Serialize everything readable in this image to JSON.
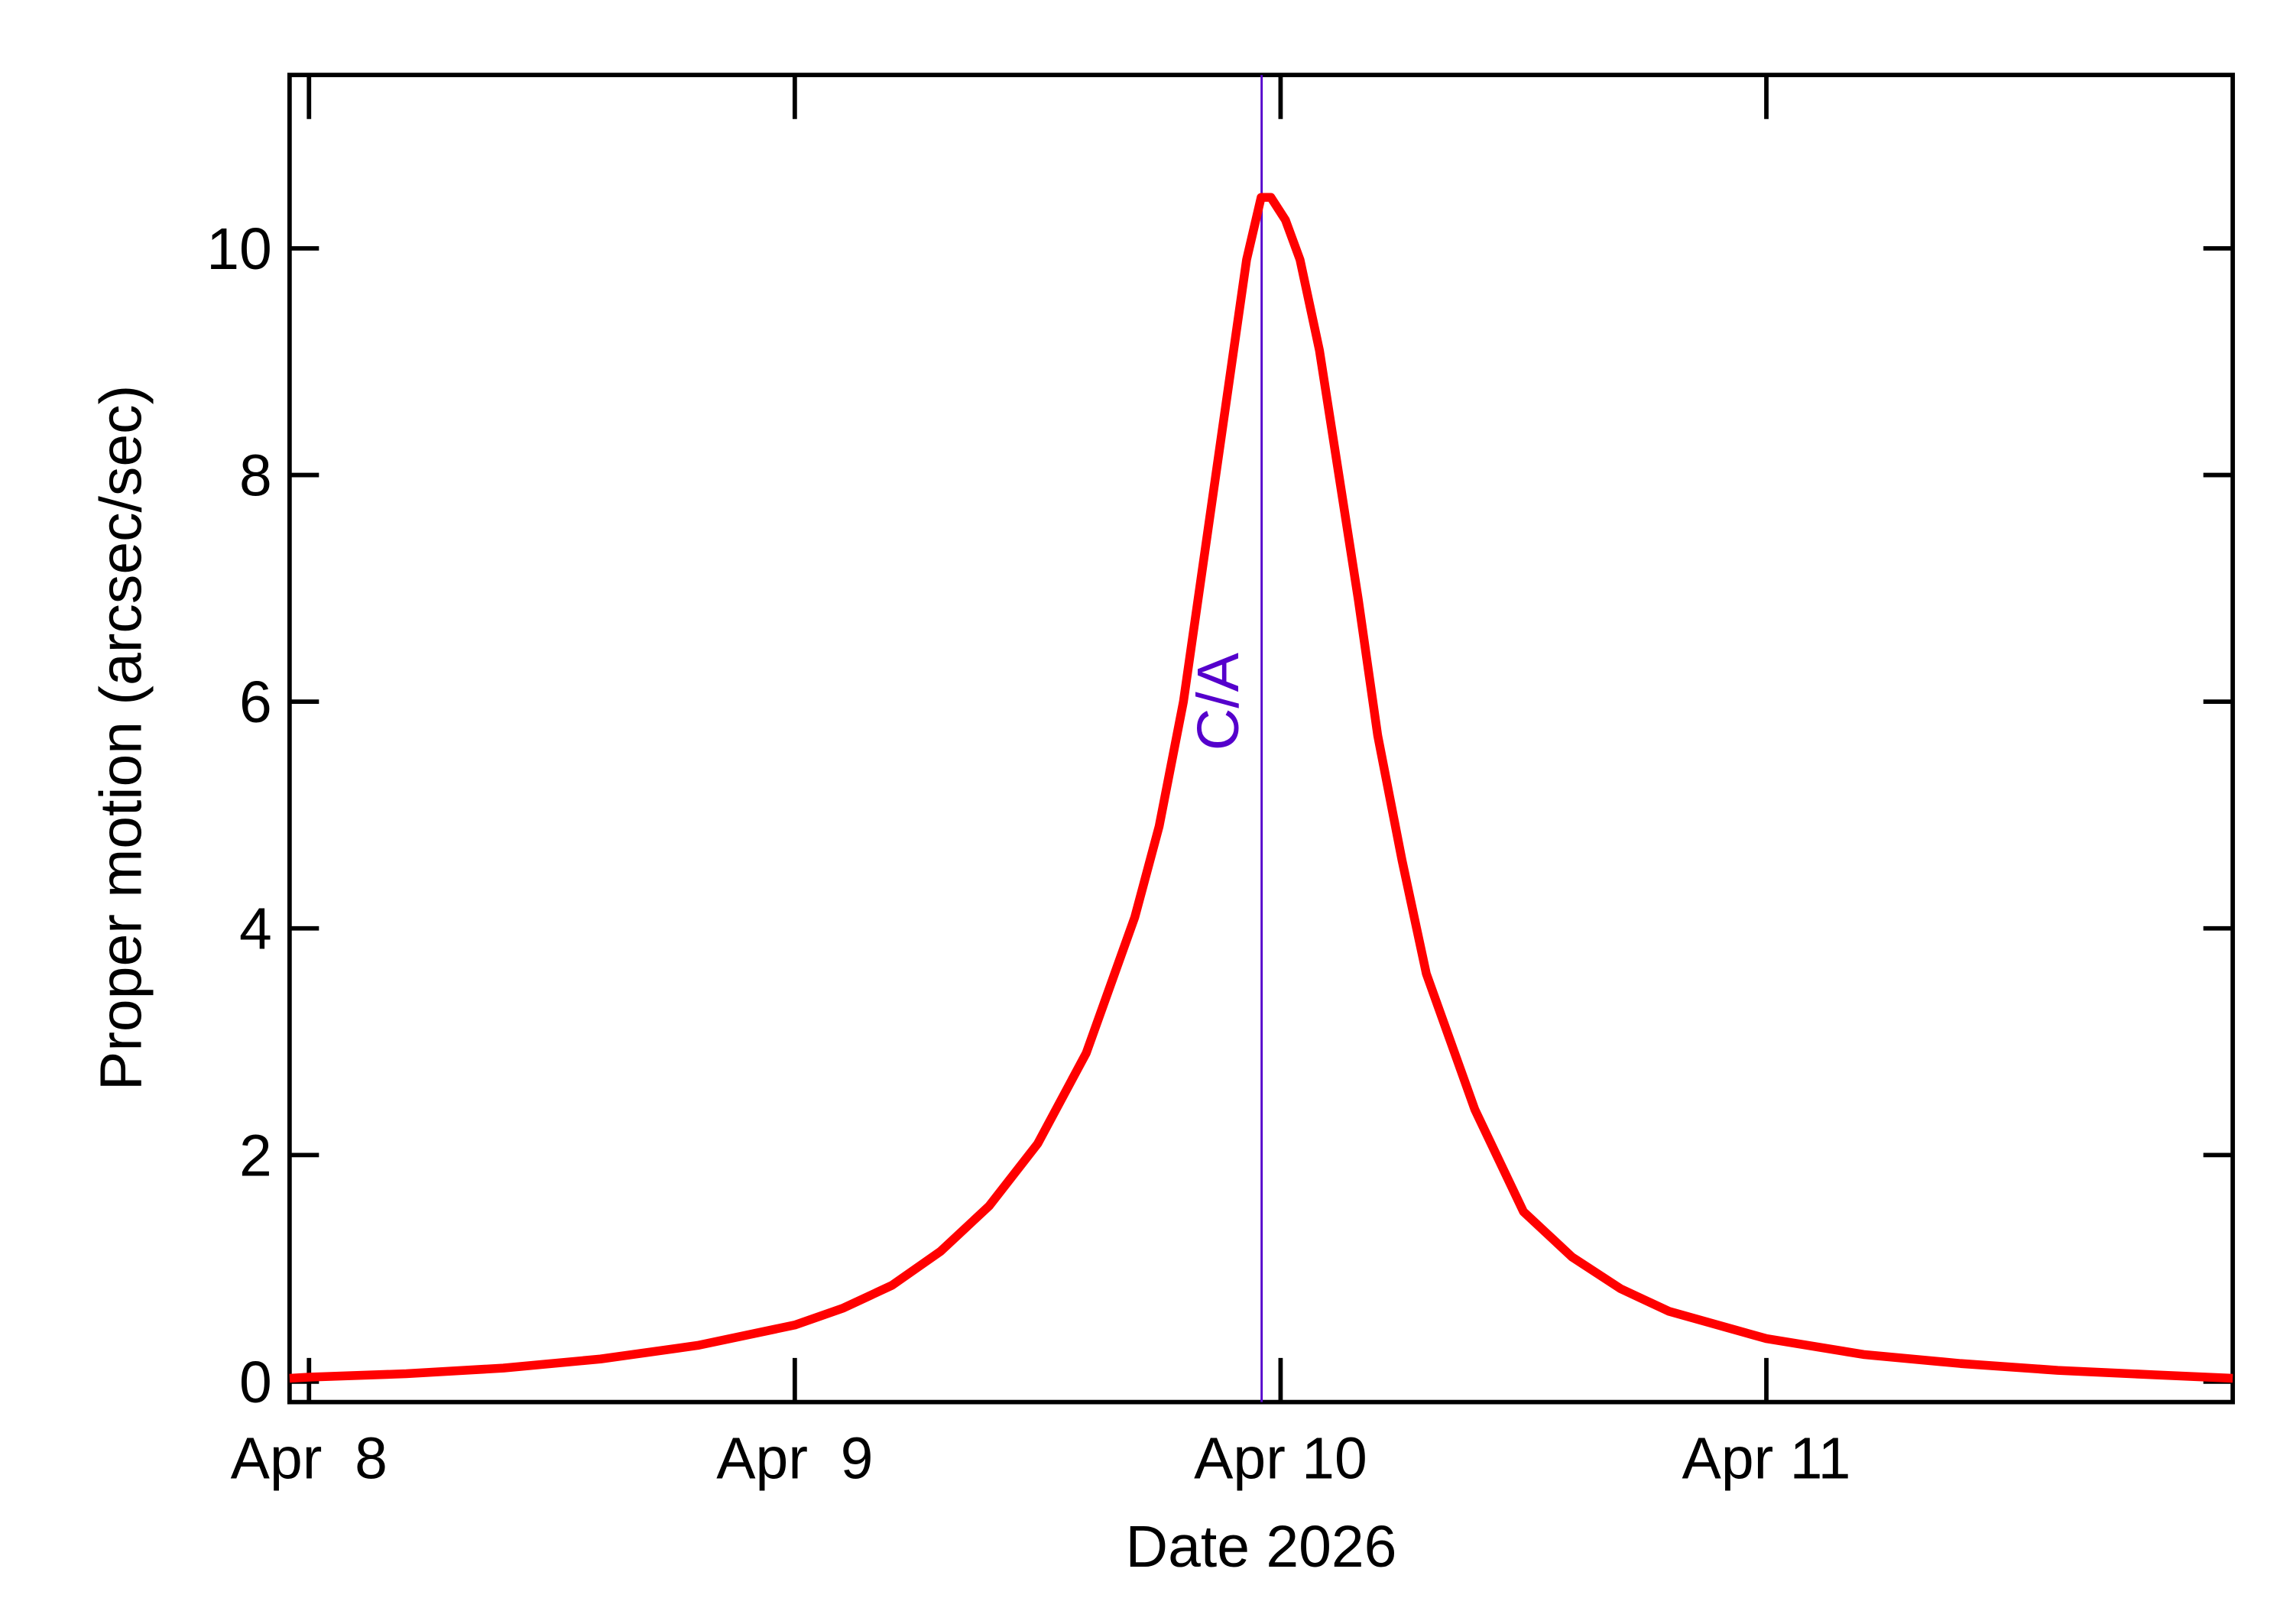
{
  "chart_data": {
    "type": "line",
    "x_label": "Date 2026",
    "y_label": "Proper motion (arcsec/sec)",
    "x": [
      -0.04,
      0.0,
      0.2,
      0.4,
      0.6,
      0.8,
      1.0,
      1.1,
      1.2,
      1.3,
      1.4,
      1.5,
      1.6,
      1.7,
      1.75,
      1.8,
      1.85,
      1.9,
      1.93,
      1.96,
      1.98,
      2.01,
      2.04,
      2.08,
      2.12,
      2.16,
      2.2,
      2.25,
      2.3,
      2.4,
      2.5,
      2.6,
      2.7,
      2.8,
      3.0,
      3.2,
      3.4,
      3.6,
      3.8,
      3.96
    ],
    "series": [
      {
        "name": "Proper motion",
        "color": "#ff0000",
        "values": [
          0.03,
          0.04,
          0.07,
          0.12,
          0.2,
          0.32,
          0.5,
          0.65,
          0.85,
          1.15,
          1.55,
          2.1,
          2.9,
          4.1,
          4.9,
          6.0,
          7.5,
          9.0,
          9.9,
          10.45,
          10.45,
          10.25,
          9.9,
          9.1,
          8.0,
          6.9,
          5.7,
          4.6,
          3.6,
          2.4,
          1.5,
          1.1,
          0.82,
          0.62,
          0.38,
          0.24,
          0.16,
          0.1,
          0.06,
          0.03
        ]
      }
    ],
    "xlim": [
      -0.04,
      3.96
    ],
    "ylim": [
      -0.18,
      11.53
    ],
    "xticks": [
      {
        "value": 0,
        "label": "Apr  8"
      },
      {
        "value": 1,
        "label": "Apr  9"
      },
      {
        "value": 2,
        "label": "Apr 10"
      },
      {
        "value": 3,
        "label": "Apr 11"
      }
    ],
    "yticks": [
      0,
      2,
      4,
      6,
      8,
      10
    ],
    "annotation": {
      "text": "C/A",
      "x": 1.961,
      "color": "#5500cc"
    }
  }
}
